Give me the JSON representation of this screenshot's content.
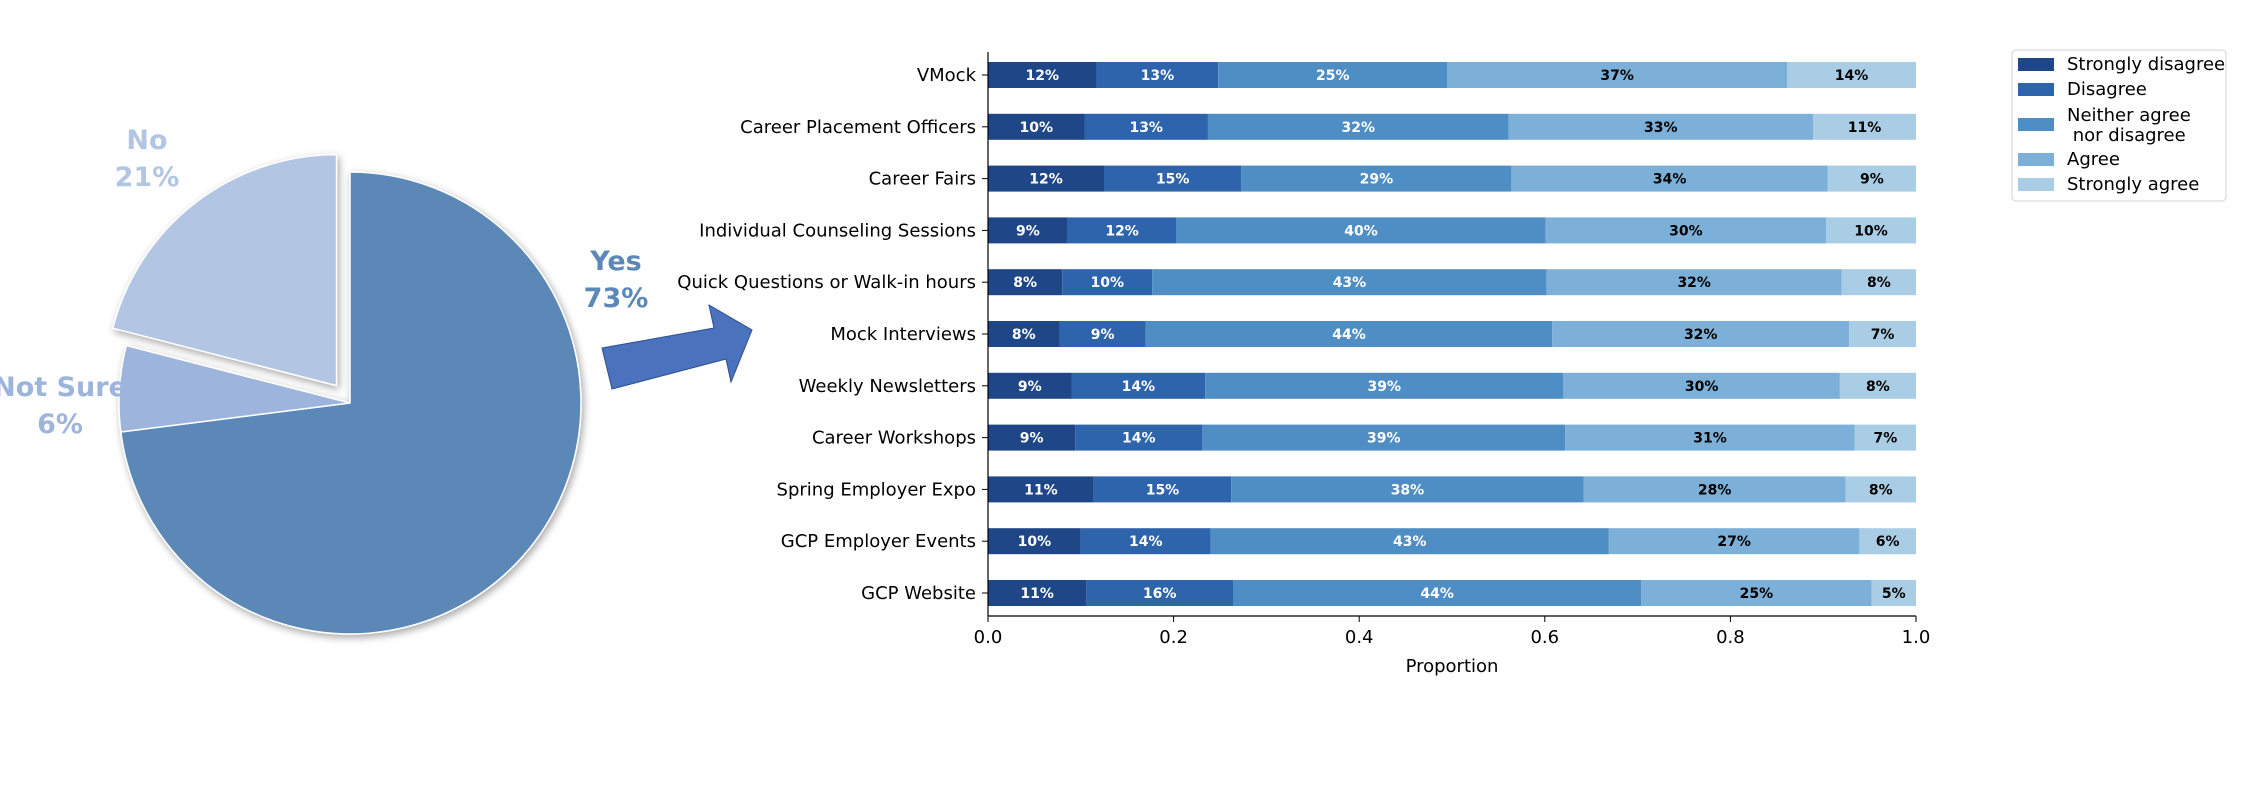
{
  "chart_data": [
    {
      "type": "pie",
      "slices": [
        {
          "label": "Yes",
          "value": 73,
          "pct_text": "73%",
          "color": "#5b88b8",
          "label_color": "#5b88b8"
        },
        {
          "label": "Not Sure",
          "value": 6,
          "pct_text": "6%",
          "color": "#9db5dc",
          "label_color": "#9db5dc"
        },
        {
          "label": "No",
          "value": 21,
          "pct_text": "21%",
          "color": "#b2c5e2",
          "label_color": "#b2c5e2",
          "exploded": true
        }
      ],
      "arrow_color": "#4a72bd"
    },
    {
      "type": "bar",
      "orientation": "horizontal",
      "stacked": true,
      "xlabel": "Proportion",
      "xlim": [
        0.0,
        1.0
      ],
      "xticks": [
        "0.0",
        "0.2",
        "0.4",
        "0.6",
        "0.8",
        "1.0"
      ],
      "legend_position": "top-right",
      "categories": [
        "VMock",
        "Career Placement Officers",
        "Career Fairs",
        "Individual Counseling Sessions",
        "Quick Questions or Walk-in hours",
        "Mock Interviews",
        "Weekly Newsletters",
        "Career Workshops",
        "Spring Employer Expo",
        "GCP Employer Events",
        "GCP Website"
      ],
      "series": [
        {
          "name": "Strongly disagree",
          "color": "#1f4788",
          "label_color": "#ffffff",
          "values": [
            0.117,
            0.104,
            0.125,
            0.086,
            0.08,
            0.077,
            0.09,
            0.094,
            0.114,
            0.1,
            0.106
          ],
          "labels": [
            "12%",
            "10%",
            "12%",
            "9%",
            "8%",
            "8%",
            "9%",
            "9%",
            "11%",
            "10%",
            "11%"
          ]
        },
        {
          "name": "Disagree",
          "color": "#2e64ac",
          "label_color": "#ffffff",
          "values": [
            0.131,
            0.133,
            0.148,
            0.117,
            0.097,
            0.093,
            0.144,
            0.137,
            0.148,
            0.14,
            0.158
          ],
          "labels": [
            "13%",
            "13%",
            "15%",
            "12%",
            "10%",
            "9%",
            "14%",
            "14%",
            "15%",
            "14%",
            "16%"
          ]
        },
        {
          "name": "Neither agree\n nor disagree",
          "color": "#4f8ec5",
          "label_color": "#ffffff",
          "values": [
            0.247,
            0.324,
            0.291,
            0.398,
            0.425,
            0.438,
            0.386,
            0.391,
            0.38,
            0.429,
            0.44
          ],
          "labels": [
            "25%",
            "32%",
            "29%",
            "40%",
            "43%",
            "44%",
            "39%",
            "39%",
            "38%",
            "43%",
            "44%"
          ]
        },
        {
          "name": "Agree",
          "color": "#7db0d8",
          "label_color": "#000000",
          "values": [
            0.366,
            0.328,
            0.341,
            0.302,
            0.318,
            0.32,
            0.298,
            0.312,
            0.282,
            0.27,
            0.248
          ],
          "labels": [
            "37%",
            "33%",
            "34%",
            "30%",
            "32%",
            "32%",
            "30%",
            "31%",
            "28%",
            "27%",
            "25%"
          ]
        },
        {
          "name": "Strongly agree",
          "color": "#aacde6",
          "label_color": "#000000",
          "values": [
            0.139,
            0.111,
            0.095,
            0.097,
            0.08,
            0.072,
            0.082,
            0.066,
            0.076,
            0.061,
            0.048
          ],
          "labels": [
            "14%",
            "11%",
            "9%",
            "10%",
            "8%",
            "7%",
            "8%",
            "7%",
            "8%",
            "6%",
            "5%"
          ]
        }
      ]
    }
  ]
}
